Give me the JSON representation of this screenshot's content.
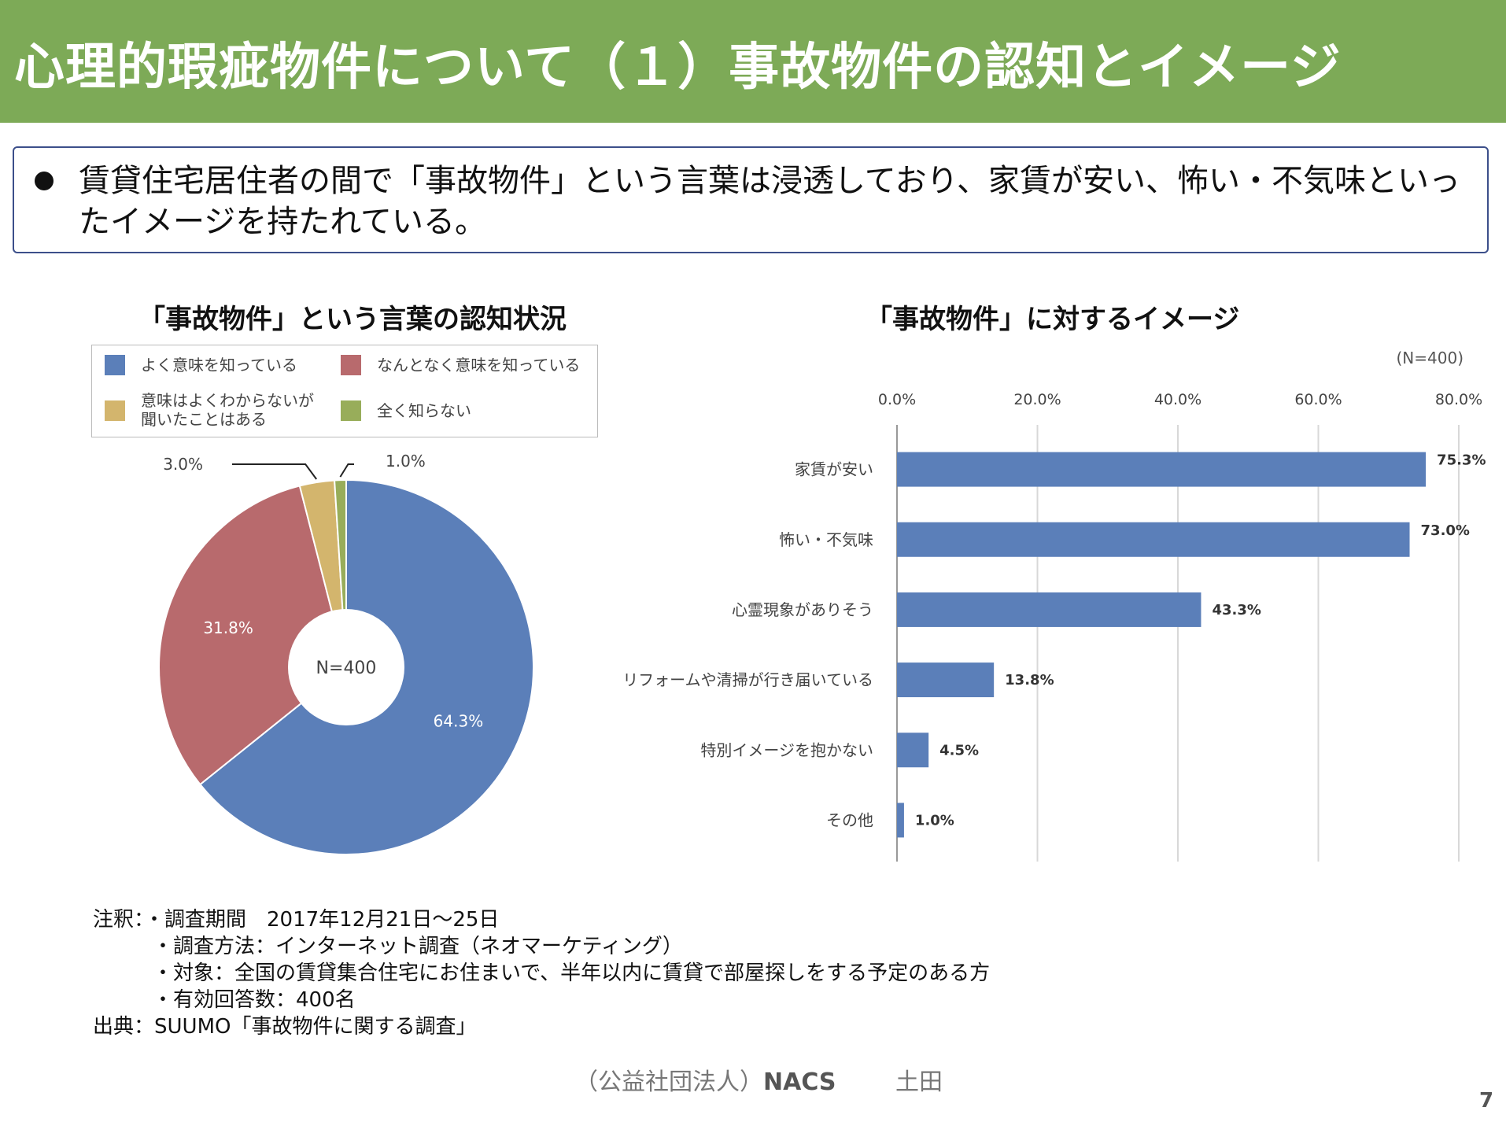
{
  "header": {
    "title": "心理的瑕疵物件について（１）事故物件の認知とイメージ"
  },
  "summary": {
    "text": "賃貸住宅居住者の間で「事故物件」という言葉は浸透しており、家賃が安い、怖い・不気味といったイメージを持たれている。"
  },
  "colors": {
    "header_bg": "#7daa57",
    "blue": "#5b7fb9",
    "red": "#b86a6d",
    "tan": "#d3b56d",
    "green": "#98ad5a"
  },
  "chart_data": [
    {
      "type": "pie",
      "title": "「事故物件」という言葉の認知状況",
      "center_label": "N=400",
      "legend_position": "top",
      "series": [
        {
          "name": "よく意味を知っている",
          "value": 64.3,
          "label": "64.3%",
          "color": "#5b7fb9"
        },
        {
          "name": "なんとなく意味を知っている",
          "value": 31.8,
          "label": "31.8%",
          "color": "#b86a6d"
        },
        {
          "name": "意味はよくわからないが聞いたことはある",
          "value": 3.0,
          "label": "3.0%",
          "color": "#d3b56d"
        },
        {
          "name": "全く知らない",
          "value": 1.0,
          "label": "1.0%",
          "color": "#98ad5a"
        }
      ]
    },
    {
      "type": "bar",
      "orientation": "horizontal",
      "title": "「事故物件」に対するイメージ",
      "sample_note": "(N=400)",
      "categories": [
        "家賃が安い",
        "怖い・不気味",
        "心霊現象がありそう",
        "リフォームや清掃が行き届いている",
        "特別イメージを抱かない",
        "その他"
      ],
      "values": [
        75.3,
        73.0,
        43.3,
        13.8,
        4.5,
        1.0
      ],
      "value_labels": [
        "75.3%",
        "73.0%",
        "43.3%",
        "13.8%",
        "4.5%",
        "1.0%"
      ],
      "xlim": [
        0,
        80
      ],
      "xticks": [
        "0.0%",
        "20.0%",
        "40.0%",
        "60.0%",
        "80.0%"
      ],
      "grid": true,
      "color": "#5b7fb9"
    }
  ],
  "notes": [
    "注釈：・調査期間　2017年12月21日～25日",
    "・調査方法：インターネット調査（ネオマーケティング）",
    "・対象：全国の賃貸集合住宅にお住まいで、半年以内に賃貸で部屋探しをする予定のある方",
    "・有効回答数：400名",
    "出典：SUUMO「事故物件に関する調査」"
  ],
  "footer": {
    "org": "（公益社団法人）",
    "org_abbr": "NACS",
    "name": "土田",
    "page": "7"
  }
}
